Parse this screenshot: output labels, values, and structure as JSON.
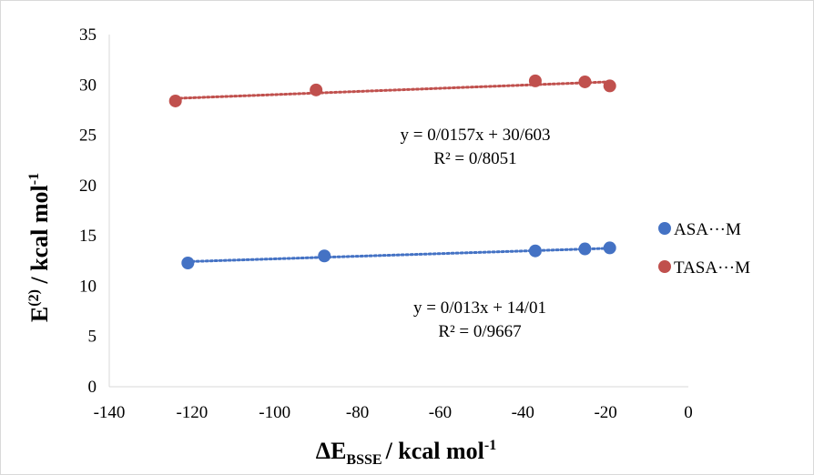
{
  "chart_data": {
    "type": "scatter",
    "xlabel": {
      "main": "ΔE",
      "sub": "BSSE",
      "rest": "/ kcal mol",
      "sup": "-1"
    },
    "ylabel": {
      "main": "E",
      "sup1": "(2)",
      "rest": " / kcal mol",
      "sup2": "-1"
    },
    "xlim": [
      -140,
      0
    ],
    "ylim": [
      0,
      35
    ],
    "x_ticks": [
      "-140",
      "-120",
      "-100",
      "-80",
      "-60",
      "-40",
      "-20",
      "0"
    ],
    "y_ticks": [
      "0",
      "5",
      "10",
      "15",
      "20",
      "25",
      "30",
      "35"
    ],
    "legend_position": "right",
    "series": [
      {
        "name": "ASA···M",
        "color": "#4472c4",
        "points": [
          [
            -121,
            12.3
          ],
          [
            -88,
            13.0
          ],
          [
            -37,
            13.5
          ],
          [
            -25,
            13.7
          ],
          [
            -19,
            13.8
          ]
        ],
        "trend": {
          "slope": 0.013,
          "intercept": 14.01,
          "x_range": [
            -121,
            -19
          ],
          "style": "dotted"
        },
        "equation": "y = 0/013x + 14/01",
        "r2": "R² = 0/9667"
      },
      {
        "name": "TASA···M",
        "color": "#c0504d",
        "points": [
          [
            -124,
            28.4
          ],
          [
            -90,
            29.5
          ],
          [
            -37,
            30.4
          ],
          [
            -25,
            30.3
          ],
          [
            -19,
            29.9
          ]
        ],
        "trend": {
          "slope": 0.0157,
          "intercept": 30.603,
          "x_range": [
            -124,
            -19
          ],
          "style": "dotted"
        },
        "equation": "y = 0/0157x + 30/603",
        "r2": "R² = 0/8051"
      }
    ]
  }
}
